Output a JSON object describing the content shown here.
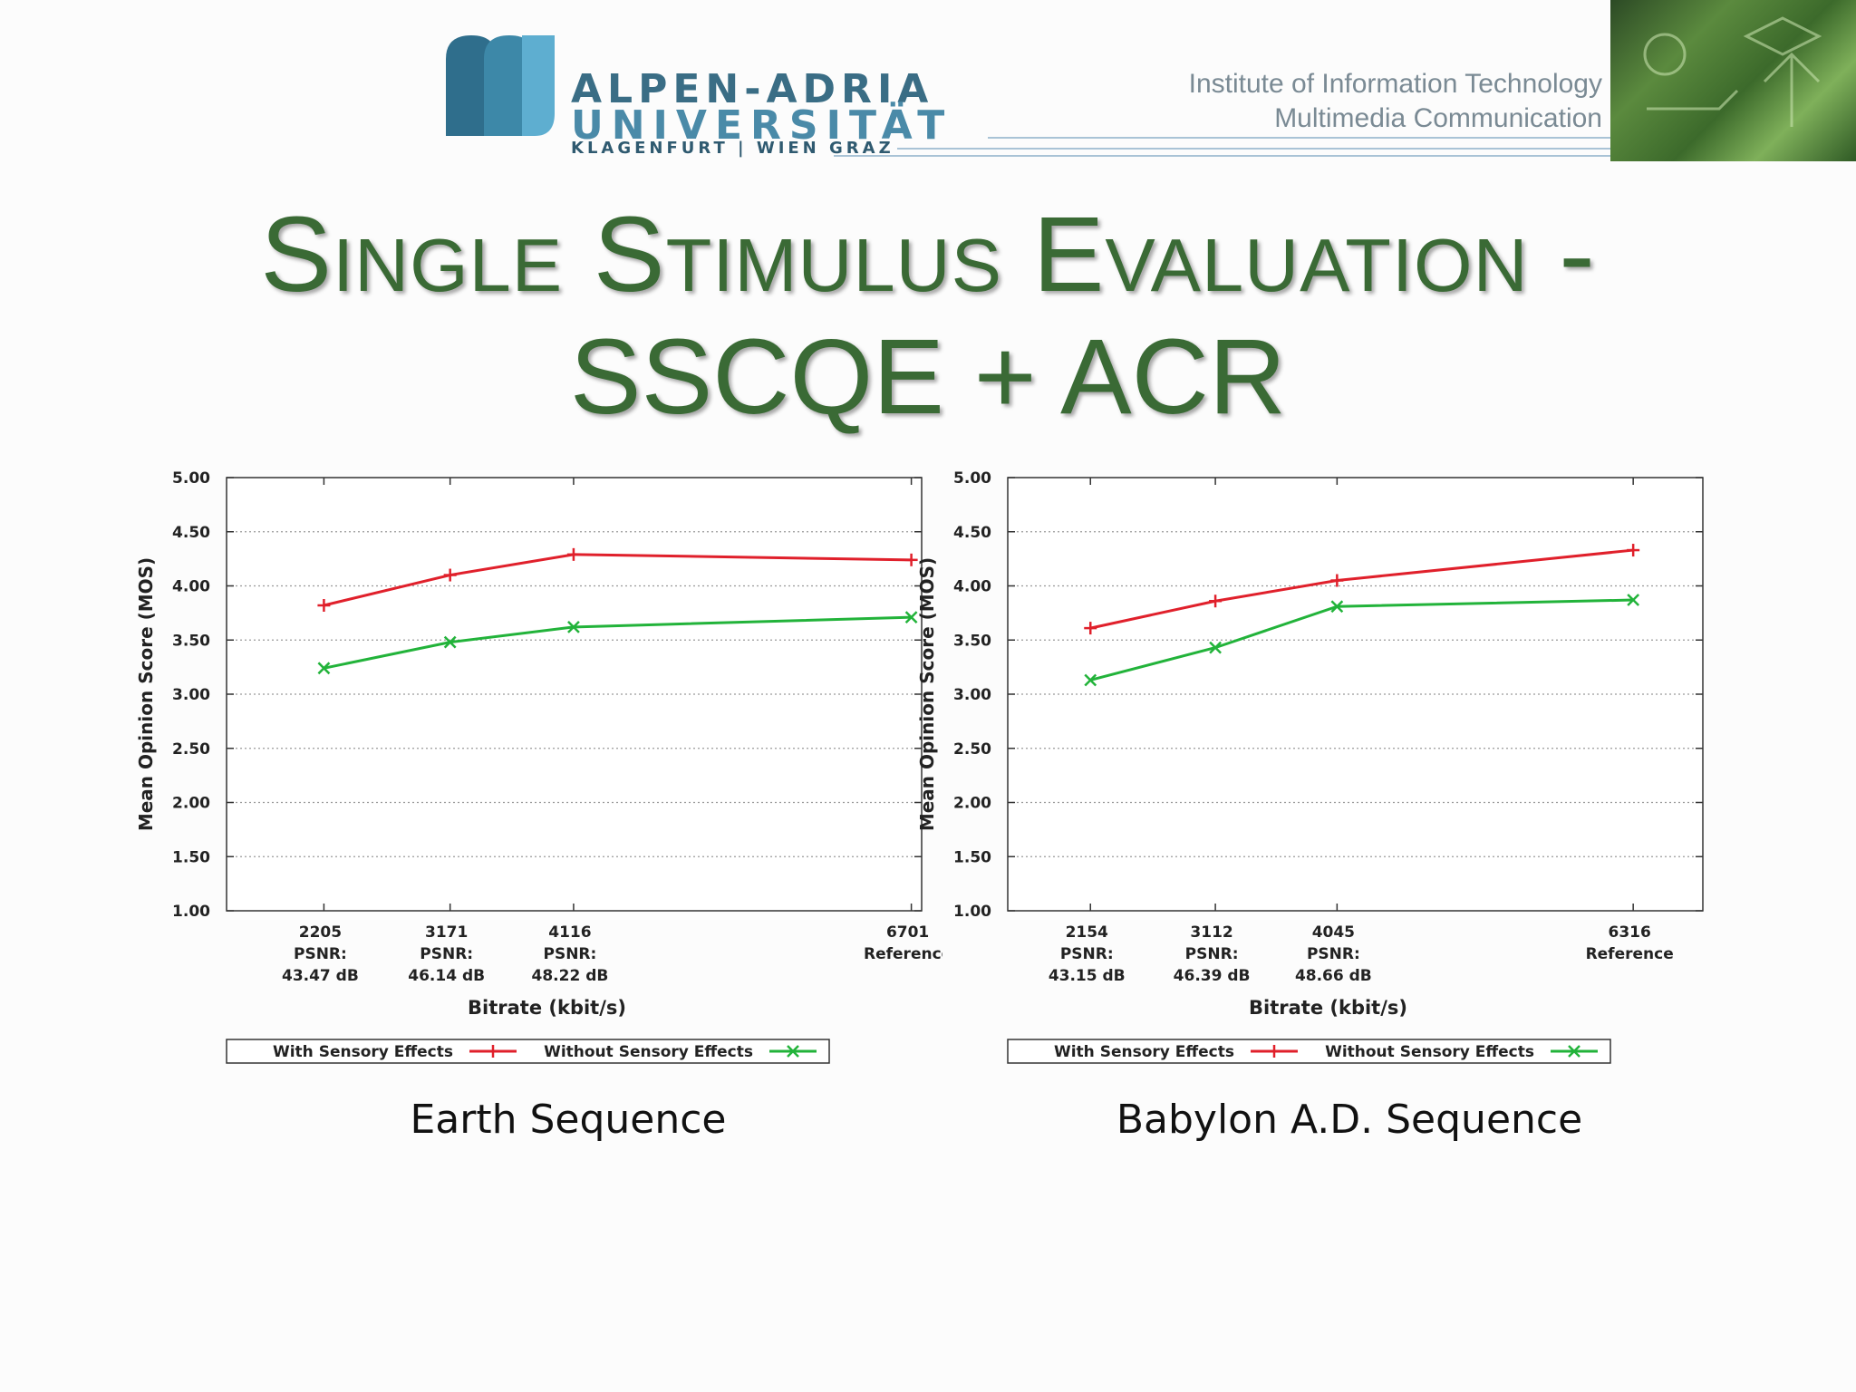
{
  "header": {
    "university": {
      "line1": "ALPEN-ADRIA",
      "line2": "UNIVERSITÄT",
      "line3": "KLAGENFURT | WIEN GRAZ"
    },
    "institute": {
      "line1": "Institute of Information Technology",
      "line2": "Multimedia Communication"
    }
  },
  "slide": {
    "title_line1": "Single Stimulus Evaluation -",
    "title_line2": "SSCQE + ACR"
  },
  "colors": {
    "with": "#e0202b",
    "without": "#22b33a",
    "title": "#3a6a35"
  },
  "chart_data": [
    {
      "type": "line",
      "caption": "Earth Sequence",
      "ylabel": "Mean Opinion Score (MOS)",
      "xlabel": "Bitrate (kbit/s)",
      "ylim": [
        1.0,
        5.0
      ],
      "yticks": [
        "1.00",
        "1.50",
        "2.00",
        "2.50",
        "3.00",
        "3.50",
        "4.00",
        "4.50",
        "5.00"
      ],
      "x": [
        2205,
        3171,
        4116,
        6701
      ],
      "xlim": [
        1460,
        6780
      ],
      "xtick_labels": [
        [
          "2205",
          "PSNR:",
          "43.47 dB"
        ],
        [
          "3171",
          "PSNR:",
          "46.14 dB"
        ],
        [
          "4116",
          "PSNR:",
          "48.22 dB"
        ],
        [
          "6701",
          "Reference"
        ]
      ],
      "series": [
        {
          "name": "With Sensory Effects",
          "values": [
            3.82,
            4.1,
            4.29,
            4.24
          ]
        },
        {
          "name": "Without Sensory Effects",
          "values": [
            3.24,
            3.48,
            3.62,
            3.71
          ]
        }
      ]
    },
    {
      "type": "line",
      "caption": "Babylon A.D. Sequence",
      "ylabel": "Mean Opinion Score (MOS)",
      "xlabel": "Bitrate (kbit/s)",
      "ylim": [
        1.0,
        5.0
      ],
      "yticks": [
        "1.00",
        "1.50",
        "2.00",
        "2.50",
        "3.00",
        "3.50",
        "4.00",
        "4.50",
        "5.00"
      ],
      "x": [
        2154,
        3112,
        4045,
        6316
      ],
      "xlim": [
        1520,
        6850
      ],
      "xtick_labels": [
        [
          "2154",
          "PSNR:",
          "43.15 dB"
        ],
        [
          "3112",
          "PSNR:",
          "46.39 dB"
        ],
        [
          "4045",
          "PSNR:",
          "48.66 dB"
        ],
        [
          "6316",
          "Reference"
        ]
      ],
      "series": [
        {
          "name": "With Sensory Effects",
          "values": [
            3.61,
            3.86,
            4.05,
            4.33
          ]
        },
        {
          "name": "Without Sensory Effects",
          "values": [
            3.13,
            3.43,
            3.81,
            3.87
          ]
        }
      ]
    }
  ]
}
